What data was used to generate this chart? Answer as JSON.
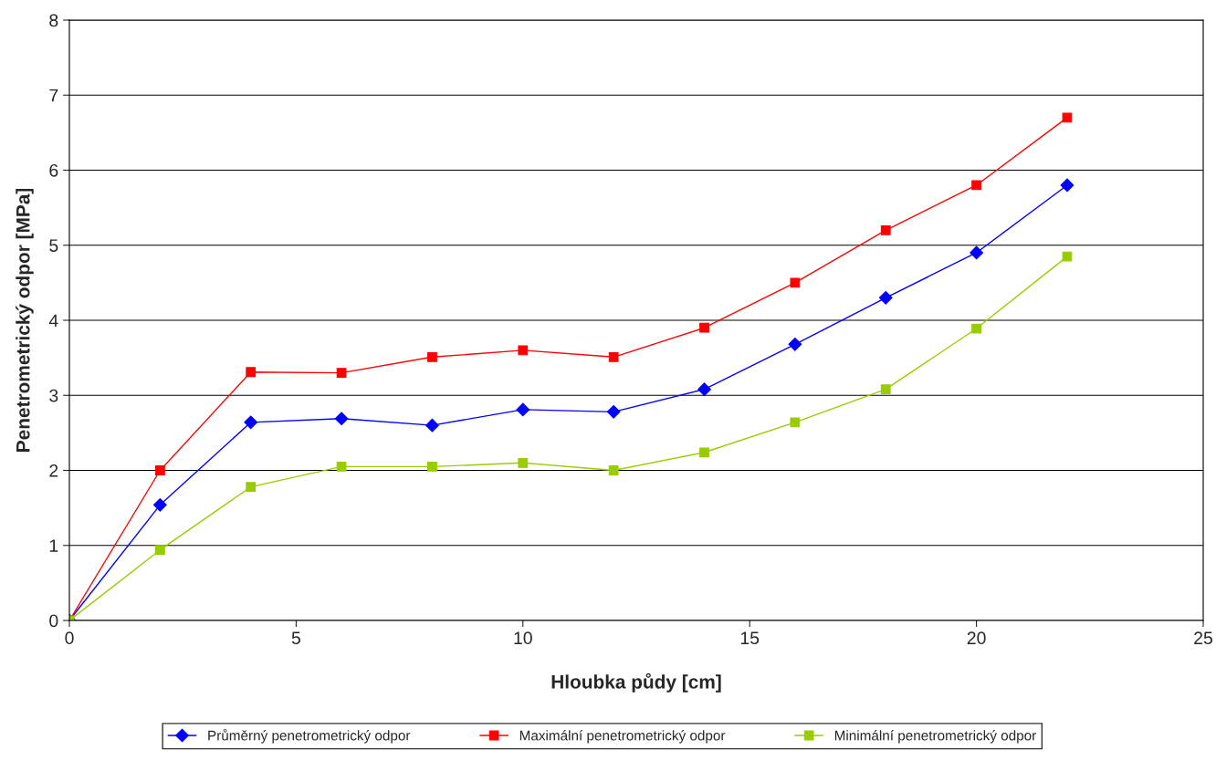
{
  "chart_data": {
    "type": "line",
    "xlabel": "Hloubka půdy [cm]",
    "ylabel": "Penetrometrický odpor [MPa]",
    "x": [
      0,
      2,
      4,
      6,
      8,
      10,
      12,
      14,
      16,
      18,
      20,
      22
    ],
    "series": [
      {
        "name": "Průměrný penetrometrický odpor",
        "color": "#0000ff",
        "marker": "diamond",
        "values": [
          0,
          1.54,
          2.64,
          2.69,
          2.6,
          2.81,
          2.78,
          3.08,
          3.68,
          4.3,
          4.9,
          5.8
        ]
      },
      {
        "name": "Maximální penetrometrický odpor",
        "color": "#ff0000",
        "marker": "square",
        "values": [
          0,
          2.0,
          3.31,
          3.3,
          3.51,
          3.6,
          3.51,
          3.9,
          4.5,
          5.2,
          5.8,
          6.7
        ]
      },
      {
        "name": "Minimální penetrometrický odpor",
        "color": "#99cc00",
        "marker": "square",
        "values": [
          0,
          0.94,
          1.78,
          2.05,
          2.05,
          2.1,
          2.0,
          2.24,
          2.64,
          3.08,
          3.89,
          4.85
        ]
      }
    ],
    "xlim": [
      0,
      25
    ],
    "xticks": [
      0,
      5,
      10,
      15,
      20,
      25
    ],
    "ylim": [
      0,
      8
    ],
    "yticks": [
      0,
      1,
      2,
      3,
      4,
      5,
      6,
      7,
      8
    ],
    "grid": "y",
    "legend": "bottom"
  }
}
